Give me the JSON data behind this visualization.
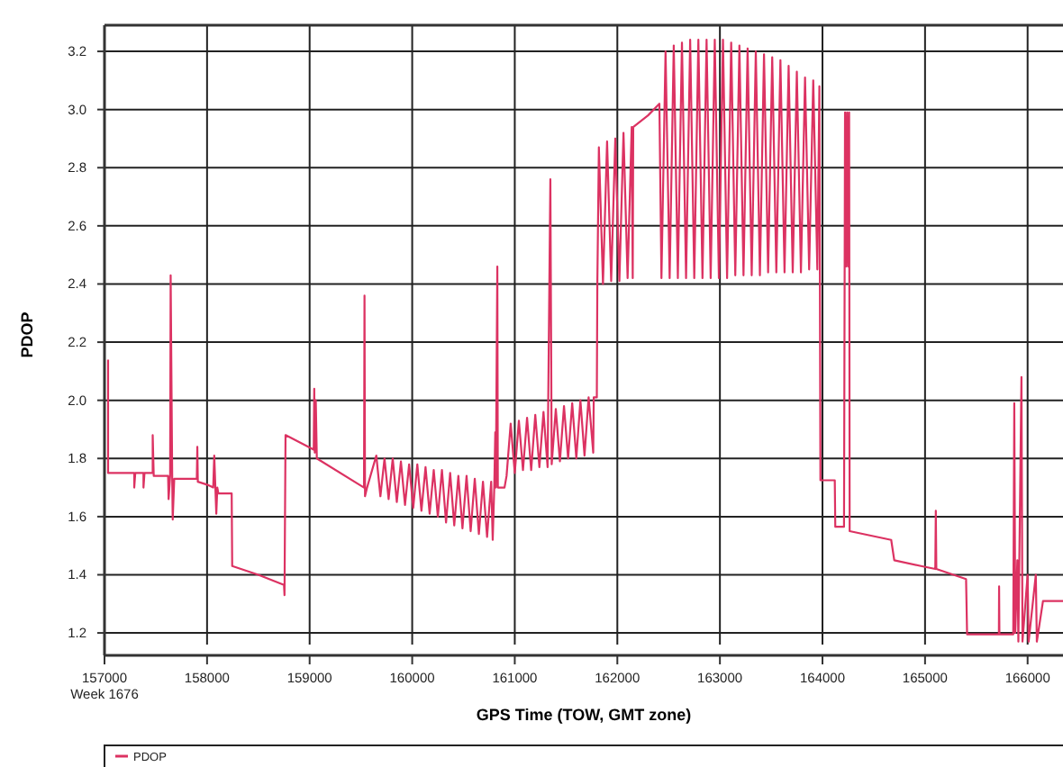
{
  "chart_data": {
    "type": "line",
    "xlabel": "GPS Time (TOW, GMT zone)",
    "ylabel": "PDOP",
    "xlim": [
      157000,
      166345
    ],
    "ylim": [
      1.16,
      3.29
    ],
    "xticks": [
      {
        "value": 157000,
        "label": "157000\nWeek 1676"
      },
      158000,
      159000,
      160000,
      161000,
      162000,
      163000,
      164000,
      165000,
      166000
    ],
    "yticks": [
      {
        "value": 1.2,
        "label": "1.2"
      },
      {
        "value": 1.4,
        "label": "1.4"
      },
      {
        "value": 1.6,
        "label": "1.6"
      },
      {
        "value": 1.8,
        "label": "1.8"
      },
      {
        "value": 2.0,
        "label": "2.0"
      },
      {
        "value": 2.2,
        "label": "2.2"
      },
      {
        "value": 2.4,
        "label": "2.4"
      },
      {
        "value": 2.6,
        "label": "2.6"
      },
      {
        "value": 2.8,
        "label": "2.8"
      },
      {
        "value": 3.0,
        "label": "3.0"
      },
      {
        "value": 3.2,
        "label": "3.2"
      }
    ],
    "grid": true,
    "legend": "bottom",
    "marker": "none",
    "line_style": "solid",
    "series": [
      {
        "name": "PDOP",
        "color": "#dc3262",
        "x": [
          157035,
          157035,
          157045,
          157290,
          157290,
          157300,
          157380,
          157380,
          157390,
          157470,
          157470,
          157480,
          157620,
          157625,
          157640,
          157645,
          157660,
          157665,
          157680,
          157900,
          157905,
          157910,
          158000,
          158060,
          158070,
          158090,
          158100,
          158110,
          158240,
          158245,
          158500,
          158750,
          158755,
          158765,
          158770,
          159040,
          159045,
          159050,
          159060,
          159070,
          159530,
          159535,
          159540,
          159560,
          159650,
          159690,
          159730,
          159770,
          159810,
          159850,
          159890,
          159930,
          159970,
          160010,
          160050,
          160090,
          160130,
          160170,
          160210,
          160250,
          160290,
          160330,
          160370,
          160410,
          160450,
          160490,
          160530,
          160570,
          160610,
          160650,
          160690,
          160730,
          160770,
          160785,
          160800,
          160810,
          160815,
          160830,
          160835,
          160900,
          160920,
          160960,
          161000,
          161040,
          161080,
          161120,
          161160,
          161200,
          161240,
          161280,
          161320,
          161347,
          161360,
          161400,
          161440,
          161480,
          161520,
          161560,
          161600,
          161640,
          161680,
          161720,
          161765,
          161770,
          161800,
          161805,
          161820,
          161860,
          161900,
          161940,
          161980,
          162020,
          162060,
          162100,
          162140,
          162150,
          162155,
          162300,
          162410,
          162430,
          162470,
          162510,
          162550,
          162590,
          162630,
          162670,
          162710,
          162750,
          162790,
          162830,
          162870,
          162910,
          162950,
          162990,
          163030,
          163070,
          163110,
          163150,
          163190,
          163230,
          163270,
          163310,
          163350,
          163390,
          163430,
          163470,
          163510,
          163550,
          163590,
          163630,
          163670,
          163710,
          163750,
          163790,
          163830,
          163870,
          163910,
          163950,
          163970,
          163980,
          164120,
          164125,
          164210,
          164220,
          164230,
          164240,
          164250,
          164260,
          164265,
          164670,
          164700,
          164960,
          165100,
          165105,
          165110,
          165400,
          165410,
          165720,
          165722,
          165725,
          165860,
          165870,
          165880,
          165900,
          165910,
          165940,
          165950,
          166000,
          166010,
          166080,
          166090,
          166150,
          166345
        ],
        "values": [
          2.14,
          1.75,
          1.75,
          1.75,
          1.7,
          1.75,
          1.75,
          1.7,
          1.75,
          1.75,
          1.88,
          1.74,
          1.74,
          1.66,
          1.74,
          2.43,
          1.74,
          1.59,
          1.73,
          1.73,
          1.84,
          1.72,
          1.71,
          1.7,
          1.81,
          1.61,
          1.7,
          1.68,
          1.68,
          1.43,
          1.4,
          1.365,
          1.33,
          1.88,
          1.88,
          1.83,
          2.04,
          1.82,
          2.0,
          1.8,
          1.7,
          2.36,
          1.67,
          1.7,
          1.81,
          1.67,
          1.8,
          1.66,
          1.8,
          1.65,
          1.79,
          1.64,
          1.78,
          1.63,
          1.78,
          1.62,
          1.77,
          1.61,
          1.76,
          1.6,
          1.76,
          1.58,
          1.75,
          1.57,
          1.74,
          1.56,
          1.74,
          1.55,
          1.73,
          1.54,
          1.72,
          1.53,
          1.72,
          1.52,
          1.7,
          1.89,
          1.7,
          2.46,
          1.7,
          1.7,
          1.74,
          1.92,
          1.75,
          1.93,
          1.76,
          1.94,
          1.76,
          1.95,
          1.77,
          1.96,
          1.77,
          2.76,
          1.78,
          1.97,
          1.79,
          1.98,
          1.8,
          1.99,
          1.8,
          2.0,
          1.81,
          2.01,
          1.82,
          2.01,
          2.01,
          2.4,
          2.87,
          2.4,
          2.89,
          2.41,
          2.9,
          2.41,
          2.92,
          2.42,
          2.94,
          2.42,
          2.94,
          2.98,
          3.02,
          2.42,
          3.2,
          2.42,
          3.22,
          2.42,
          3.23,
          2.42,
          3.24,
          2.42,
          3.24,
          2.42,
          3.24,
          2.42,
          3.24,
          2.42,
          3.24,
          2.42,
          3.23,
          2.43,
          3.22,
          2.43,
          3.21,
          2.43,
          3.2,
          2.43,
          3.19,
          2.44,
          3.18,
          2.44,
          3.17,
          2.44,
          3.15,
          2.44,
          3.13,
          2.44,
          3.11,
          2.45,
          3.1,
          2.45,
          3.08,
          1.725,
          1.725,
          1.565,
          1.565,
          2.99,
          2.46,
          2.99,
          2.46,
          2.99,
          1.55,
          1.52,
          1.45,
          1.43,
          1.42,
          1.62,
          1.42,
          1.385,
          1.195,
          1.195,
          1.36,
          1.195,
          1.195,
          1.99,
          1.2,
          1.45,
          1.17,
          2.08,
          1.17,
          1.4,
          1.17,
          1.4,
          1.17,
          1.31,
          1.31
        ]
      }
    ]
  }
}
